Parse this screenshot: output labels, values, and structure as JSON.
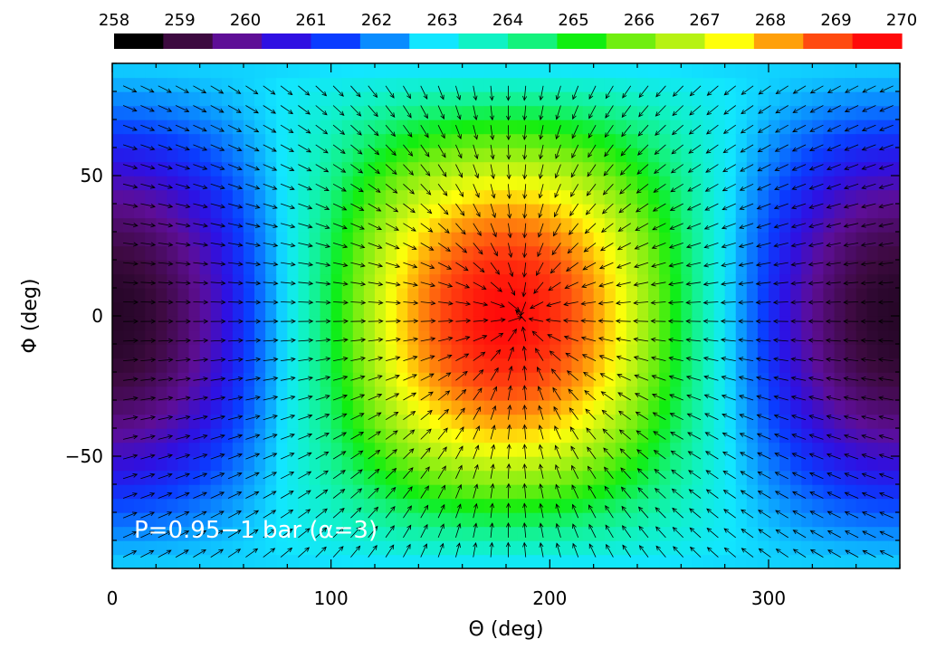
{
  "chart_data": {
    "type": "heatmap",
    "title": "",
    "annotation": "P=0.95−1 bar (α=3)",
    "xlabel": "Θ (deg)",
    "ylabel": "Φ (deg)",
    "xlim": [
      0,
      360
    ],
    "ylim": [
      -90,
      90
    ],
    "x_ticks": [
      {
        "value": 0,
        "label": "0"
      },
      {
        "value": 100,
        "label": "100"
      },
      {
        "value": 200,
        "label": "200"
      },
      {
        "value": 300,
        "label": "300"
      }
    ],
    "y_ticks": [
      {
        "value": 50,
        "label": "50"
      },
      {
        "value": 0,
        "label": "0"
      },
      {
        "value": -50,
        "label": "−50"
      }
    ],
    "colorbar": {
      "placement": "top",
      "range": [
        258,
        270
      ],
      "tick_labels": [
        "258",
        "259",
        "260",
        "261",
        "262",
        "263",
        "264",
        "265",
        "266",
        "267",
        "268",
        "269",
        "270"
      ],
      "colors": [
        "#000000",
        "#3d0a40",
        "#5e0e96",
        "#2f10e2",
        "#0a3cff",
        "#0a8cff",
        "#12e6ff",
        "#10f2c4",
        "#14f27c",
        "#10ee10",
        "#70ee10",
        "#b6f214",
        "#ffff0a",
        "#ffa00a",
        "#ff4a10",
        "#ff0a0a"
      ]
    },
    "field": {
      "description_units": "temperature (K), approximate",
      "min": 258,
      "max": 270,
      "hot_spot_center": {
        "theta": 180,
        "phi": 0
      },
      "peak_value": 270,
      "cold_value": 258.5
    },
    "wind_vectors": {
      "present": true,
      "direction": "converging toward hot spot near theta=180"
    }
  }
}
